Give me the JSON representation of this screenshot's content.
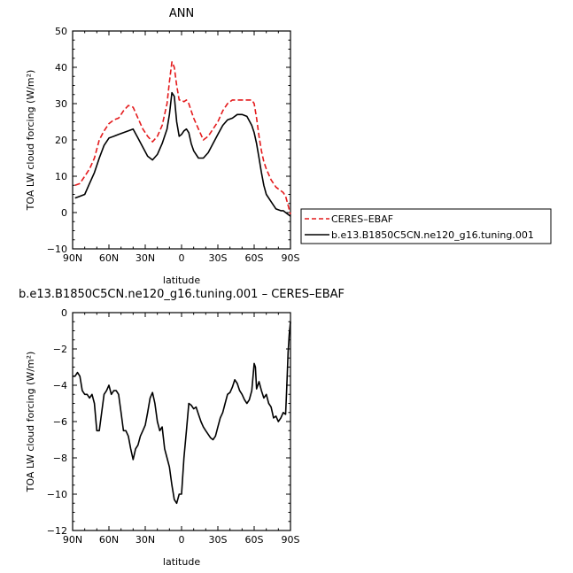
{
  "chart_data": [
    {
      "type": "line",
      "title": "ANN",
      "xlabel": "latitude",
      "ylabel": "TOA LW cloud forcing (W/m²)",
      "xlim": [
        90,
        -90
      ],
      "ylim": [
        -10,
        50
      ],
      "xticks": [
        90,
        60,
        30,
        0,
        -30,
        -60,
        -90
      ],
      "xtick_labels": [
        "90N",
        "60N",
        "30N",
        "0",
        "30S",
        "60S",
        "90S"
      ],
      "yticks": [
        -10,
        0,
        10,
        20,
        30,
        40,
        50
      ],
      "ytick_labels": [
        "−10",
        "0",
        "10",
        "20",
        "30",
        "40",
        "50"
      ],
      "legend_position": "right",
      "series": [
        {
          "name": "CERES–EBAF",
          "color": "#e41a1c",
          "dash": "dashed",
          "x": [
            88,
            84,
            80,
            76,
            72,
            68,
            64,
            60,
            56,
            52,
            48,
            44,
            40,
            36,
            32,
            28,
            24,
            20,
            16,
            12,
            10,
            8,
            6,
            4,
            2,
            0,
            -2,
            -4,
            -6,
            -8,
            -10,
            -14,
            -18,
            -22,
            -26,
            -30,
            -34,
            -38,
            -42,
            -46,
            -50,
            -54,
            -58,
            -60,
            -62,
            -64,
            -66,
            -68,
            -70,
            -74,
            -78,
            -82,
            -84,
            -86,
            -88,
            -90
          ],
          "y": [
            7.5,
            8,
            10,
            12,
            15,
            20,
            22.5,
            24.5,
            25.5,
            26,
            28,
            29.5,
            29,
            26,
            23,
            21,
            19.5,
            21,
            24,
            30,
            36,
            41.5,
            40,
            35,
            31,
            31,
            30.5,
            31,
            30,
            28,
            26,
            23,
            20,
            21,
            23,
            25,
            28,
            30,
            31,
            31,
            31,
            31,
            31,
            30,
            26,
            21,
            17,
            14,
            12,
            9,
            7,
            6,
            5.5,
            4.5,
            2,
            -0.5
          ]
        },
        {
          "name": "b.e13.B1850C5CN.ne120_g16.tuning.001",
          "color": "#000000",
          "dash": "solid",
          "x": [
            88,
            84,
            80,
            76,
            72,
            68,
            64,
            60,
            56,
            52,
            48,
            44,
            40,
            36,
            32,
            28,
            24,
            20,
            16,
            12,
            10,
            8,
            6,
            4,
            2,
            0,
            -2,
            -4,
            -6,
            -8,
            -10,
            -14,
            -18,
            -22,
            -26,
            -30,
            -34,
            -38,
            -42,
            -46,
            -50,
            -54,
            -58,
            -60,
            -62,
            -64,
            -66,
            -68,
            -70,
            -74,
            -78,
            -82,
            -84,
            -86,
            -88,
            -90
          ],
          "y": [
            4,
            4.5,
            5,
            8,
            11,
            15,
            18.5,
            20.5,
            21,
            21.5,
            22,
            22.5,
            23,
            20.5,
            18,
            15.5,
            14.5,
            16,
            19,
            23,
            27,
            33,
            32,
            25,
            21,
            21.5,
            22.5,
            23,
            22,
            19,
            17,
            15,
            15,
            16.5,
            19,
            21.5,
            24,
            25.5,
            26,
            27,
            27,
            26.5,
            24,
            22,
            19,
            15,
            11,
            7.5,
            5,
            3,
            1,
            0.5,
            0.5,
            0,
            -0.5,
            -1
          ]
        }
      ]
    },
    {
      "type": "line",
      "title": "b.e13.B1850C5CN.ne120_g16.tuning.001 – CERES–EBAF",
      "xlabel": "latitude",
      "ylabel": "TOA LW cloud forcing (W/m²)",
      "xlim": [
        90,
        -90
      ],
      "ylim": [
        -12,
        0
      ],
      "xticks": [
        90,
        60,
        30,
        0,
        -30,
        -60,
        -90
      ],
      "xtick_labels": [
        "90N",
        "60N",
        "30N",
        "0",
        "30S",
        "60S",
        "90S"
      ],
      "yticks": [
        -12,
        -10,
        -8,
        -6,
        -4,
        -2,
        0
      ],
      "ytick_labels": [
        "−12",
        "−10",
        "−8",
        "−6",
        "−4",
        "−2",
        "0"
      ],
      "series": [
        {
          "color": "#000000",
          "dash": "solid",
          "x": [
            90,
            88,
            86,
            84,
            82,
            80,
            78,
            76,
            74,
            72,
            70,
            68,
            66,
            64,
            62,
            60,
            58,
            56,
            54,
            52,
            50,
            48,
            46,
            44,
            42,
            40,
            38,
            36,
            34,
            32,
            30,
            28,
            26,
            24,
            22,
            20,
            18,
            16,
            14,
            12,
            10,
            8,
            6,
            4,
            2,
            0,
            -2,
            -4,
            -6,
            -8,
            -10,
            -12,
            -14,
            -16,
            -18,
            -20,
            -22,
            -24,
            -26,
            -28,
            -30,
            -32,
            -34,
            -36,
            -38,
            -40,
            -42,
            -44,
            -46,
            -48,
            -50,
            -52,
            -54,
            -56,
            -58,
            -60,
            -61,
            -62,
            -63,
            -64,
            -66,
            -68,
            -70,
            -72,
            -74,
            -76,
            -78,
            -80,
            -82,
            -84,
            -86,
            -87,
            -88,
            -89,
            -90
          ],
          "y": [
            -3.5,
            -3.5,
            -3.3,
            -3.5,
            -4.3,
            -4.5,
            -4.5,
            -4.7,
            -4.5,
            -5,
            -6.5,
            -6.5,
            -5.5,
            -4.5,
            -4.3,
            -4,
            -4.5,
            -4.3,
            -4.3,
            -4.5,
            -5.5,
            -6.5,
            -6.5,
            -6.8,
            -7.5,
            -8.1,
            -7.5,
            -7.3,
            -6.8,
            -6.5,
            -6.2,
            -5.5,
            -4.7,
            -4.4,
            -5,
            -6,
            -6.5,
            -6.3,
            -7.5,
            -8,
            -8.5,
            -9.5,
            -10.3,
            -10.5,
            -10,
            -10,
            -8,
            -6.5,
            -5,
            -5.1,
            -5.3,
            -5.2,
            -5.6,
            -6,
            -6.3,
            -6.5,
            -6.7,
            -6.9,
            -7,
            -6.8,
            -6.3,
            -5.8,
            -5.5,
            -5,
            -4.5,
            -4.4,
            -4.1,
            -3.7,
            -3.9,
            -4.3,
            -4.5,
            -4.8,
            -5,
            -4.8,
            -4.3,
            -2.8,
            -3,
            -4.2,
            -4,
            -3.8,
            -4.3,
            -4.7,
            -4.5,
            -5,
            -5.2,
            -5.8,
            -5.7,
            -6,
            -5.8,
            -5.5,
            -5.6,
            -4,
            -2.2,
            -1.2,
            -0.5
          ]
        }
      ]
    }
  ]
}
